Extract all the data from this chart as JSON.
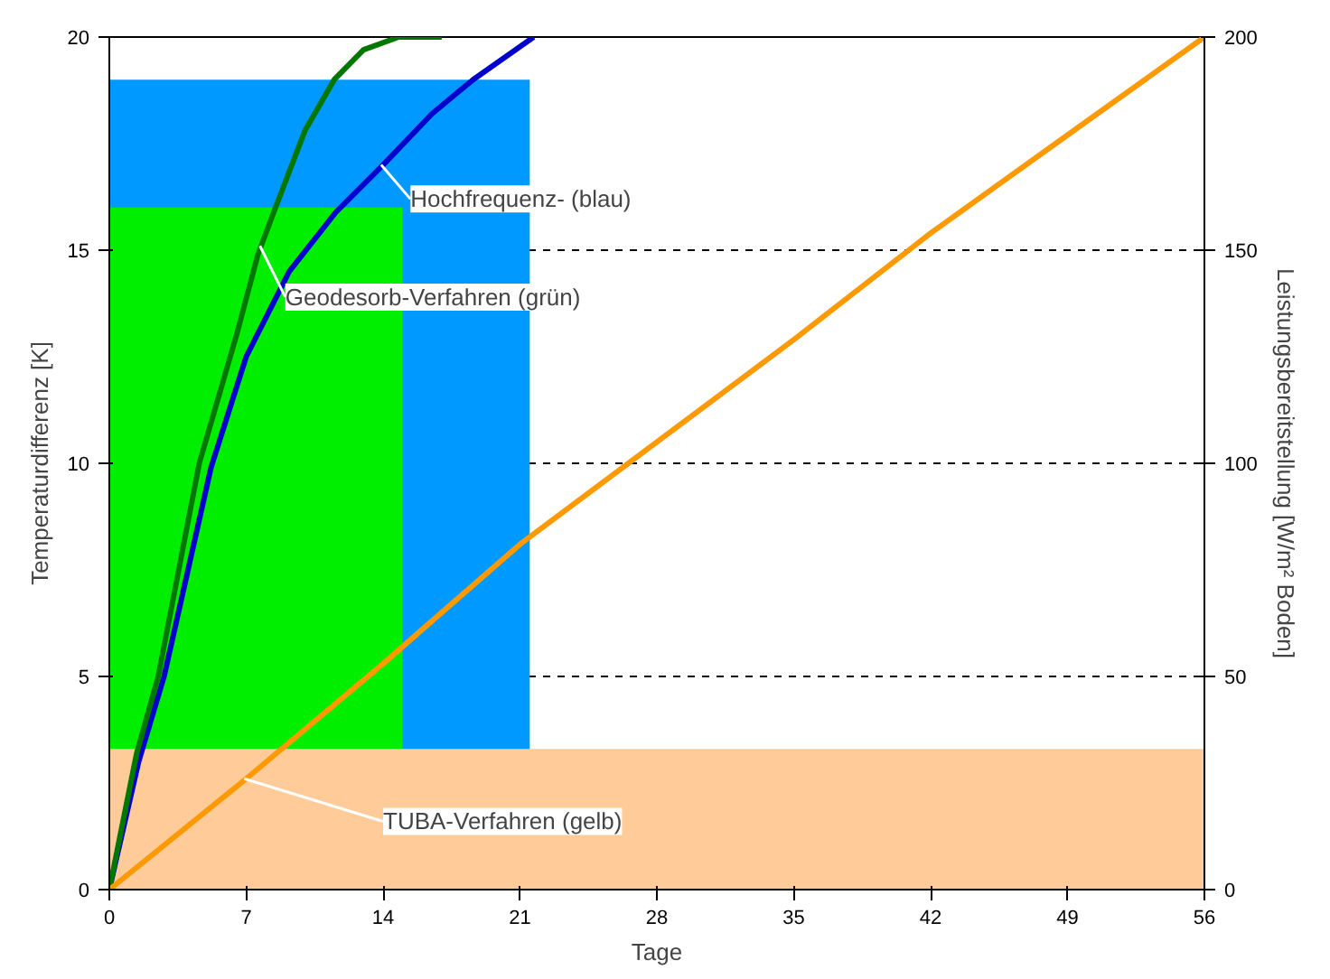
{
  "chart_data": {
    "type": "line",
    "xlabel": "Tage",
    "ylabel": "Temperaturdifferenz [K]",
    "y2label": "Leistungsbereitstellung [W/m² Boden]",
    "xlim": [
      0,
      56
    ],
    "xticks": [
      0,
      7,
      14,
      21,
      28,
      35,
      42,
      49,
      56
    ],
    "ylim": [
      0,
      20
    ],
    "yticks": [
      0,
      5,
      10,
      15,
      20
    ],
    "y2lim": [
      0,
      200
    ],
    "y2ticks": [
      0,
      50,
      100,
      150,
      200
    ],
    "grid": false,
    "line_style": "solid",
    "marker": "none",
    "ref_lines": [
      {
        "axis": "y2",
        "value": 50,
        "color": "#000000",
        "line_style": "dashed"
      },
      {
        "axis": "y2",
        "value": 100,
        "color": "#000000",
        "line_style": "dashed"
      },
      {
        "axis": "y2",
        "value": 150,
        "color": "#000000",
        "line_style": "dashed"
      }
    ],
    "series": [
      {
        "type": "area",
        "axis": "y2",
        "color": "#0099ff",
        "x": [
          0,
          21.5
        ],
        "values": [
          190,
          190
        ]
      },
      {
        "type": "area",
        "axis": "y2",
        "color": "#00ee00",
        "x": [
          0,
          15
        ],
        "values": [
          160,
          160
        ]
      },
      {
        "type": "area",
        "axis": "y2",
        "color": "#ffcc99",
        "x": [
          0,
          56
        ],
        "values": [
          33,
          33
        ]
      },
      {
        "color": "#0000cc",
        "x": [
          0,
          1.5,
          2.8,
          5.2,
          7,
          9.2,
          11.6,
          14,
          16.5,
          18.6,
          21.7
        ],
        "values": [
          0,
          3,
          5,
          9.9,
          12.5,
          14.5,
          15.9,
          17,
          18.2,
          19,
          20
        ]
      },
      {
        "color": "#007700",
        "x": [
          0,
          1.4,
          2.5,
          4.6,
          6.5,
          7.6,
          8.5,
          10,
          11.5,
          13,
          14.8,
          17
        ],
        "values": [
          0,
          3.2,
          5,
          10,
          13,
          14.9,
          16,
          17.8,
          19,
          19.7,
          20,
          20
        ]
      },
      {
        "color": "#ff9900",
        "x": [
          0,
          7,
          14,
          21,
          28,
          35,
          42,
          49,
          56
        ],
        "values": [
          0,
          2.6,
          5.3,
          8.1,
          10.5,
          12.9,
          15.4,
          17.7,
          20
        ]
      }
    ],
    "annotations": [
      {
        "text": "Hochfrequenz- (blau)",
        "x": 13.9,
        "y": 17
      },
      {
        "text": "Geodesorb-Verfahren (grün)",
        "x": 7.7,
        "y": 15.1
      },
      {
        "text": "TUBA-Verfahren (gelb)",
        "x": 6.9,
        "y": 2.6
      }
    ]
  }
}
